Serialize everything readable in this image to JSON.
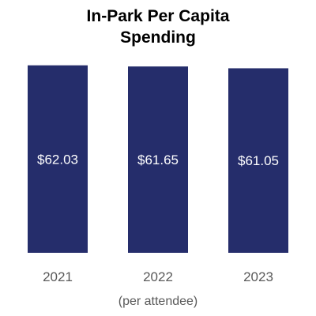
{
  "chart_data": {
    "type": "bar",
    "title_lines": [
      "In-Park Per Capita",
      "Spending"
    ],
    "categories": [
      "2021",
      "2022",
      "2023"
    ],
    "values": [
      62.03,
      61.65,
      61.05
    ],
    "data_labels": [
      "$62.03",
      "$61.65",
      "$61.05"
    ],
    "xlabel": "(per attendee)",
    "ylabel": "",
    "ylim": [
      0,
      64.3
    ],
    "grid": false,
    "legend": "none",
    "bar_color": "#252d6b",
    "label_color": "#ffffff",
    "tick_label_color": "#595959"
  }
}
